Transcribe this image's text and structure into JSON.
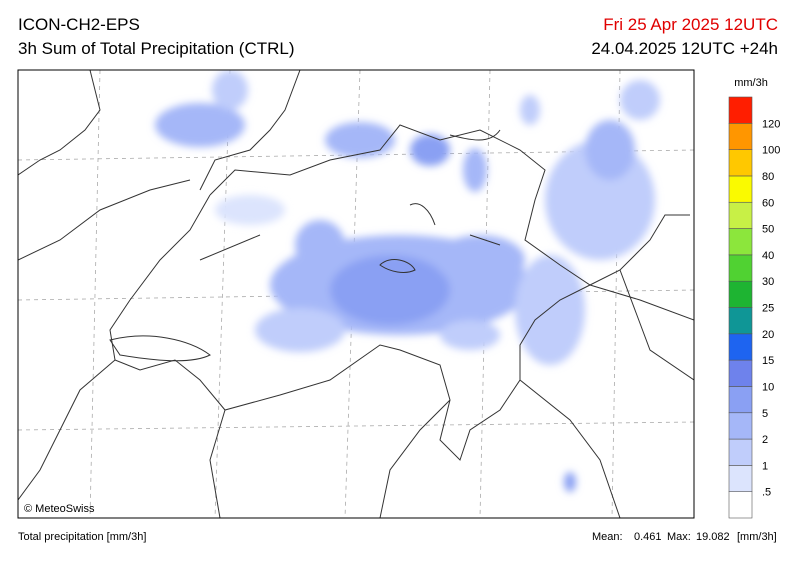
{
  "header": {
    "title": "ICON-CH2-EPS",
    "subtitle": "3h Sum of Total Precipitation (CTRL)",
    "valid_time": "Fri 25 Apr 2025 12UTC",
    "run": "24.04.2025 12UTC +24h"
  },
  "map": {
    "copyright": "© MeteoSwiss"
  },
  "legend": {
    "unit": "mm/3h",
    "labels": [
      ".5",
      "1",
      "2",
      "5",
      "10",
      "15",
      "20",
      "25",
      "30",
      "40",
      "50",
      "60",
      "80",
      "100",
      "120"
    ],
    "colors": [
      "#ffffff",
      "#dce4fd",
      "#c0cdfb",
      "#a5b7f8",
      "#8aa0f3",
      "#6e82ec",
      "#1e64f0",
      "#0f9696",
      "#1eb432",
      "#50d232",
      "#8ce63c",
      "#c8f046",
      "#fafa00",
      "#ffc800",
      "#ff9600",
      "#ff1e00"
    ]
  },
  "footer": {
    "variable": "Total precipitation [mm/3h]",
    "mean_label": "Mean:",
    "mean": 0.461,
    "max_label": "Max:",
    "max": 19.082,
    "unit": "[mm/3h]"
  }
}
